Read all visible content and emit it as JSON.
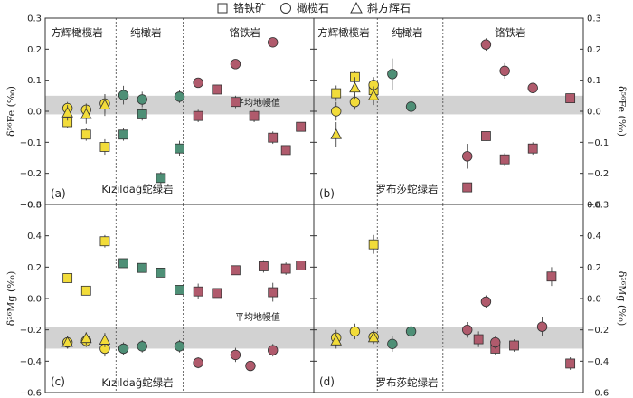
{
  "legend": {
    "items": [
      {
        "symbol": "square",
        "label": "铬铁矿"
      },
      {
        "symbol": "circle",
        "label": "橄榄石"
      },
      {
        "symbol": "triangle",
        "label": "斜方辉石"
      }
    ]
  },
  "colors": {
    "harzburgite": "#f2dc3a",
    "dunite": "#4e8f76",
    "chromitite": "#b05a6c",
    "mantle_band": "#d2d2d2",
    "frame": "#333333"
  },
  "chart_data": [
    {
      "id": "a",
      "type": "scatter",
      "panel_label": "(a)",
      "ylabel": "δ⁵⁶Fe (‰)",
      "ylim": [
        -0.3,
        0.3
      ],
      "yticks": [
        -0.3,
        -0.2,
        -0.1,
        0.0,
        0.1,
        0.2,
        0.3
      ],
      "ytick_labels_left": [
        "−0.3",
        "−0.2",
        "−0.1",
        "0.0",
        "0.1",
        "0.2",
        "0.3"
      ],
      "ytick_labels_right": [],
      "band": [
        -0.01,
        0.05
      ],
      "band_label": "平均地幔值",
      "complex_label": "Kızıldağ蛇绿岩",
      "section_labels": [
        {
          "text": "方辉橄榄岩",
          "x": 1.5
        },
        {
          "text": "纯橄岩",
          "x": 5.2
        },
        {
          "text": "铬铁岩",
          "x": 10.5
        }
      ],
      "dividers": [
        3.6,
        7.2
      ],
      "xlim": [
        0,
        14
      ],
      "series": [
        {
          "rock": "harzburgite",
          "marker": "square",
          "points": [
            [
              1,
              -0.035,
              0.02
            ],
            [
              2,
              -0.075,
              0.02
            ],
            [
              3,
              -0.115,
              0.025
            ]
          ]
        },
        {
          "rock": "harzburgite",
          "marker": "circle",
          "points": [
            [
              1,
              0.01,
              0.02
            ],
            [
              2,
              0.005,
              0.02
            ],
            [
              3,
              0.025,
              0.03
            ]
          ]
        },
        {
          "rock": "harzburgite",
          "marker": "triangle",
          "points": [
            [
              1,
              -0.005,
              0.025
            ],
            [
              2,
              -0.01,
              0.03
            ],
            [
              3,
              0.02,
              0.035
            ]
          ]
        },
        {
          "rock": "dunite",
          "marker": "square",
          "points": [
            [
              4,
              -0.075,
              0.02
            ],
            [
              5,
              -0.01,
              0.02
            ],
            [
              6,
              -0.215,
              0.02
            ],
            [
              7,
              -0.12,
              0.025
            ]
          ]
        },
        {
          "rock": "dunite",
          "marker": "circle",
          "points": [
            [
              4,
              0.052,
              0.03
            ],
            [
              5,
              0.038,
              0.025
            ],
            [
              7,
              0.047,
              0.02
            ]
          ]
        },
        {
          "rock": "chromitite",
          "marker": "square",
          "points": [
            [
              8,
              -0.015,
              0.02
            ],
            [
              9,
              0.07,
              0.015
            ],
            [
              10,
              0.03,
              0.02
            ],
            [
              11,
              -0.015,
              0.02
            ],
            [
              12,
              -0.085,
              0.02
            ],
            [
              12.7,
              -0.125,
              0.015
            ],
            [
              13.5,
              -0.05,
              0.015
            ]
          ]
        },
        {
          "rock": "chromitite",
          "marker": "circle",
          "points": [
            [
              8,
              0.092,
              0.015
            ],
            [
              10,
              0.152,
              0.015
            ],
            [
              12,
              0.222,
              0.015
            ]
          ]
        }
      ]
    },
    {
      "id": "b",
      "type": "scatter",
      "panel_label": "(b)",
      "ylabel": "δ⁵⁶Fe (‰)",
      "ylim": [
        -0.3,
        0.3
      ],
      "yticks": [
        -0.3,
        -0.2,
        -0.1,
        0.0,
        0.1,
        0.2,
        0.3
      ],
      "ytick_labels_left": [],
      "ytick_labels_right": [
        "−0.3",
        "−0.2",
        "−0.1",
        "0.0",
        "0.1",
        "0.2",
        "0.3"
      ],
      "band": [
        -0.01,
        0.05
      ],
      "band_label": "",
      "complex_label": "罗布莎蛇绿岩",
      "section_labels": [
        {
          "text": "方辉橄榄岩",
          "x": 1.4
        },
        {
          "text": "纯橄岩",
          "x": 4.8
        },
        {
          "text": "铬铁岩",
          "x": 10.3
        }
      ],
      "dividers": [
        3.2,
        6.7
      ],
      "xlim": [
        0,
        14
      ],
      "series": [
        {
          "rock": "harzburgite",
          "marker": "square",
          "points": [
            [
              1,
              0.058,
              0.025
            ],
            [
              2,
              0.11,
              0.02
            ],
            [
              3,
              0.068,
              0.025
            ]
          ]
        },
        {
          "rock": "harzburgite",
          "marker": "circle",
          "points": [
            [
              1,
              0.0,
              0.03
            ],
            [
              2,
              0.03,
              0.025
            ],
            [
              3,
              0.085,
              0.025
            ]
          ]
        },
        {
          "rock": "harzburgite",
          "marker": "triangle",
          "points": [
            [
              1,
              -0.075,
              0.04
            ],
            [
              2,
              0.075,
              0.035
            ],
            [
              3,
              0.05,
              0.03
            ]
          ]
        },
        {
          "rock": "dunite",
          "marker": "circle",
          "points": [
            [
              4,
              0.12,
              0.05
            ],
            [
              5,
              0.015,
              0.025
            ]
          ]
        },
        {
          "rock": "chromitite",
          "marker": "square",
          "points": [
            [
              8,
              -0.245,
              0.015
            ],
            [
              9,
              -0.08,
              0.015
            ],
            [
              10,
              -0.155,
              0.02
            ],
            [
              11.5,
              -0.12,
              0.02
            ],
            [
              13.5,
              0.042,
              0.015
            ]
          ]
        },
        {
          "rock": "chromitite",
          "marker": "circle",
          "points": [
            [
              8,
              -0.145,
              0.04
            ],
            [
              9,
              0.215,
              0.02
            ],
            [
              10,
              0.13,
              0.025
            ],
            [
              11.5,
              0.075,
              0.015
            ]
          ]
        }
      ]
    },
    {
      "id": "c",
      "type": "scatter",
      "panel_label": "(c)",
      "ylabel": "δ²⁶Mg (‰)",
      "ylim": [
        -0.6,
        0.6
      ],
      "yticks": [
        -0.6,
        -0.4,
        -0.2,
        0.0,
        0.2,
        0.4,
        0.6
      ],
      "ytick_labels_left": [
        "−0.6",
        "−0.4",
        "−0.2",
        "0.0",
        "0.2",
        "0.4",
        "0.6"
      ],
      "ytick_labels_right": [],
      "band": [
        -0.32,
        -0.18
      ],
      "band_label": "平均地幔值",
      "complex_label": "Kızıldağ蛇绿岩",
      "section_labels": [],
      "dividers": [
        3.6,
        7.2
      ],
      "xlim": [
        0,
        14
      ],
      "series": [
        {
          "rock": "harzburgite",
          "marker": "square",
          "points": [
            [
              1,
              0.13,
              0.03
            ],
            [
              2,
              0.05,
              0.03
            ],
            [
              3,
              0.365,
              0.04
            ]
          ]
        },
        {
          "rock": "harzburgite",
          "marker": "circle",
          "points": [
            [
              1,
              -0.28,
              0.04
            ],
            [
              2,
              -0.27,
              0.04
            ],
            [
              3,
              -0.32,
              0.05
            ]
          ]
        },
        {
          "rock": "harzburgite",
          "marker": "triangle",
          "points": [
            [
              1,
              -0.28,
              0.04
            ],
            [
              2,
              -0.255,
              0.04
            ],
            [
              3,
              -0.265,
              0.045
            ]
          ]
        },
        {
          "rock": "dunite",
          "marker": "square",
          "points": [
            [
              4,
              0.225,
              0.02
            ],
            [
              5,
              0.195,
              0.02
            ],
            [
              6,
              0.165,
              0.025
            ],
            [
              7,
              0.055,
              0.02
            ]
          ]
        },
        {
          "rock": "dunite",
          "marker": "circle",
          "points": [
            [
              4,
              -0.32,
              0.04
            ],
            [
              5,
              -0.305,
              0.04
            ],
            [
              7,
              -0.305,
              0.04
            ]
          ]
        },
        {
          "rock": "chromitite",
          "marker": "square",
          "points": [
            [
              8,
              0.045,
              0.05
            ],
            [
              9,
              0.035,
              0.02
            ],
            [
              10,
              0.18,
              0.03
            ],
            [
              11.5,
              0.205,
              0.04
            ],
            [
              12,
              0.04,
              0.06
            ],
            [
              12.7,
              0.19,
              0.04
            ],
            [
              13.5,
              0.21,
              0.03
            ]
          ]
        },
        {
          "rock": "chromitite",
          "marker": "circle",
          "points": [
            [
              8,
              -0.41,
              0.035
            ],
            [
              10,
              -0.36,
              0.045
            ],
            [
              10.8,
              -0.43,
              0.02
            ],
            [
              12,
              -0.33,
              0.04
            ]
          ]
        }
      ]
    },
    {
      "id": "d",
      "type": "scatter",
      "panel_label": "(d)",
      "ylabel": "δ²⁶Mg (‰)",
      "ylim": [
        -0.6,
        0.6
      ],
      "yticks": [
        -0.6,
        -0.4,
        -0.2,
        0.0,
        0.2,
        0.4,
        0.6
      ],
      "ytick_labels_left": [],
      "ytick_labels_right": [
        "−0.6",
        "−0.4",
        "−0.2",
        "0.0",
        "0.2",
        "0.4",
        "0.6"
      ],
      "band": [
        -0.32,
        -0.18
      ],
      "band_label": "",
      "complex_label": "罗布莎蛇绿岩",
      "section_labels": [],
      "dividers": [
        3.2,
        6.7
      ],
      "xlim": [
        0,
        14
      ],
      "series": [
        {
          "rock": "harzburgite",
          "marker": "square",
          "points": [
            [
              3,
              0.345,
              0.06
            ]
          ]
        },
        {
          "rock": "harzburgite",
          "marker": "circle",
          "points": [
            [
              1,
              -0.25,
              0.05
            ],
            [
              2,
              -0.21,
              0.05
            ],
            [
              3,
              -0.245,
              0.04
            ]
          ]
        },
        {
          "rock": "harzburgite",
          "marker": "triangle",
          "points": [
            [
              1,
              -0.27,
              0.05
            ],
            [
              3,
              -0.25,
              0.04
            ]
          ]
        },
        {
          "rock": "dunite",
          "marker": "circle",
          "points": [
            [
              4,
              -0.29,
              0.05
            ],
            [
              5,
              -0.21,
              0.05
            ]
          ]
        },
        {
          "rock": "chromitite",
          "marker": "square",
          "points": [
            [
              8.6,
              -0.26,
              0.05
            ],
            [
              9.5,
              -0.32,
              0.04
            ],
            [
              10.5,
              -0.3,
              0.04
            ],
            [
              12.5,
              0.14,
              0.06
            ],
            [
              13.5,
              -0.415,
              0.04
            ]
          ]
        },
        {
          "rock": "chromitite",
          "marker": "circle",
          "points": [
            [
              8,
              -0.2,
              0.05
            ],
            [
              9,
              -0.02,
              0.04
            ],
            [
              9.5,
              -0.28,
              0.04
            ],
            [
              12,
              -0.18,
              0.06
            ]
          ]
        }
      ]
    }
  ]
}
